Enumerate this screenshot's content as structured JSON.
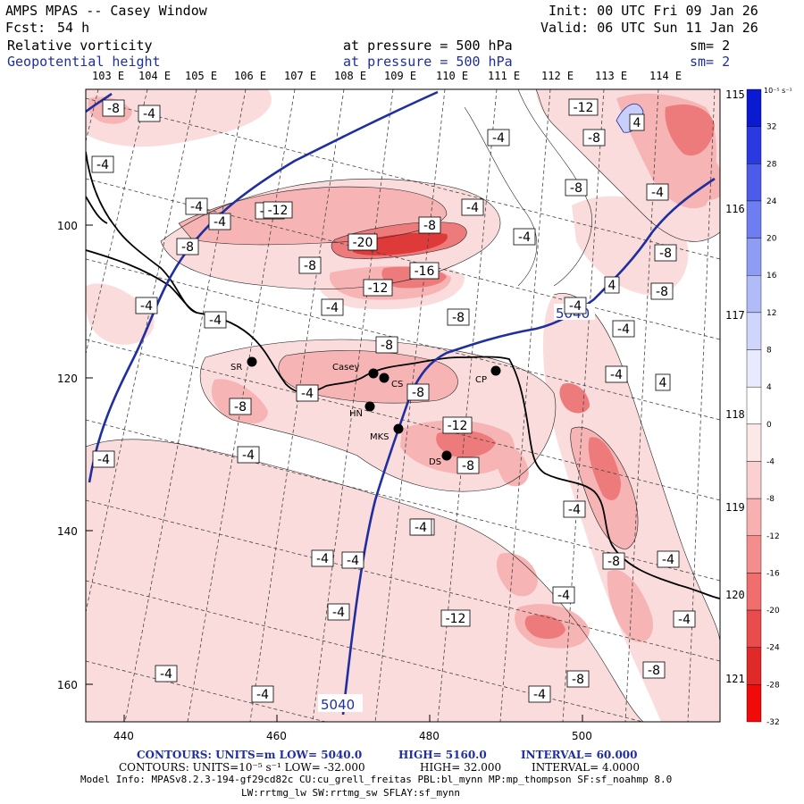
{
  "header": {
    "title": "AMPS MPAS -- Casey Window",
    "init": "Init: 00 UTC Fri 09 Jan 26",
    "fcst_label": "Fcst:",
    "fcst_value": "54 h",
    "valid": "Valid: 06 UTC Sun 11 Jan 26",
    "field1": "Relative vorticity",
    "field1_pressure": "at pressure =  500 hPa",
    "field1_sm": "sm= 2",
    "field2": "Geopotential height",
    "field2_pressure": "at pressure =  500 hPa",
    "field2_sm": "sm= 2"
  },
  "axes": {
    "top_lon_labels": [
      "103 E",
      "104 E",
      "105 E",
      "106 E",
      "107 E",
      "108 E",
      "109 E",
      "110 E",
      "111 E",
      "112 E",
      "113 E",
      "114 E"
    ],
    "right_lat_labels": [
      "115 E",
      "116 E",
      "117 E",
      "118 E",
      "119 E",
      "120 E",
      "121 E"
    ],
    "y_tick_labels": [
      "100",
      "120",
      "140",
      "160"
    ],
    "x_tick_labels": [
      "440",
      "460",
      "480",
      "500"
    ]
  },
  "stations": [
    {
      "id": "SR",
      "label": "SR"
    },
    {
      "id": "Casey",
      "label": "Casey"
    },
    {
      "id": "CS",
      "label": "CS"
    },
    {
      "id": "CP",
      "label": "CP"
    },
    {
      "id": "HN",
      "label": "HN"
    },
    {
      "id": "MKS",
      "label": "MKS"
    },
    {
      "id": "DS",
      "label": "DS"
    }
  ],
  "contour_value_labels": [
    "-8",
    "-4",
    "-4",
    "-4",
    "-4",
    "-12",
    "-12",
    "-8",
    "-8",
    "-20",
    "-8",
    "-4",
    "-16",
    "-12",
    "-4",
    "-4",
    "-4",
    "-8",
    "-4",
    "-4",
    "-8",
    "-12",
    "-8",
    "-4",
    "-4",
    "-8",
    "-4",
    "-4",
    "-4",
    "-4",
    "-8",
    "-4",
    "-4",
    "-4",
    "-8",
    "-12",
    "-4",
    "4",
    "4",
    "4",
    "-8",
    "-12",
    "-8",
    "-4",
    "-8",
    "-8",
    "-4",
    "-4",
    "-8",
    "-4",
    "-4",
    "-4",
    "-8",
    "-4",
    "-4",
    "-4"
  ],
  "height_labels": [
    "5040",
    "5040"
  ],
  "colorbar": {
    "unit": "10⁻⁵ s⁻¹",
    "labels": [
      "32",
      "28",
      "24",
      "20",
      "16",
      "12",
      "8",
      "4",
      "0",
      "-4",
      "-8",
      "-12",
      "-16",
      "-20",
      "-24",
      "-28",
      "-32"
    ],
    "colors": [
      "#0a1ad0",
      "#2a3ae0",
      "#4c5ce8",
      "#6e7ef0",
      "#8e9cf4",
      "#b0bbf8",
      "#d0d6fb",
      "#e8ebfd",
      "#ffffff",
      "#fde8e8",
      "#fbd0d0",
      "#f8b0b0",
      "#f48e8e",
      "#f06e6e",
      "#e84c4c",
      "#e02a2a",
      "#f00a0a"
    ]
  },
  "footer": {
    "line1_label": "CONTOURS:  UNITS=m  LOW=  5040.0",
    "line1_high": "HIGH=  5160.0",
    "line1_interval": "INTERVAL=   60.000",
    "line2_label": "CONTOURS:  UNITS=10⁻⁵ s⁻¹  LOW= -32.000",
    "line2_high": "HIGH=  32.000",
    "line2_interval": "INTERVAL=   4.0000",
    "model_info": "Model Info: MPASv8.2.3-194-gf29cd82c CU:cu_grell_freitas PBL:bl_mynn MP:mp_thompson SF:sf_noahmp 8.0",
    "model_info2": "LW:rrtmg_lw SW:rrtmg_sw SFLAY:sf_mynn"
  },
  "colors": {
    "height_contour": "#1f2f9f",
    "low_vort": "#e03030",
    "high_vort": "#1030e0"
  }
}
